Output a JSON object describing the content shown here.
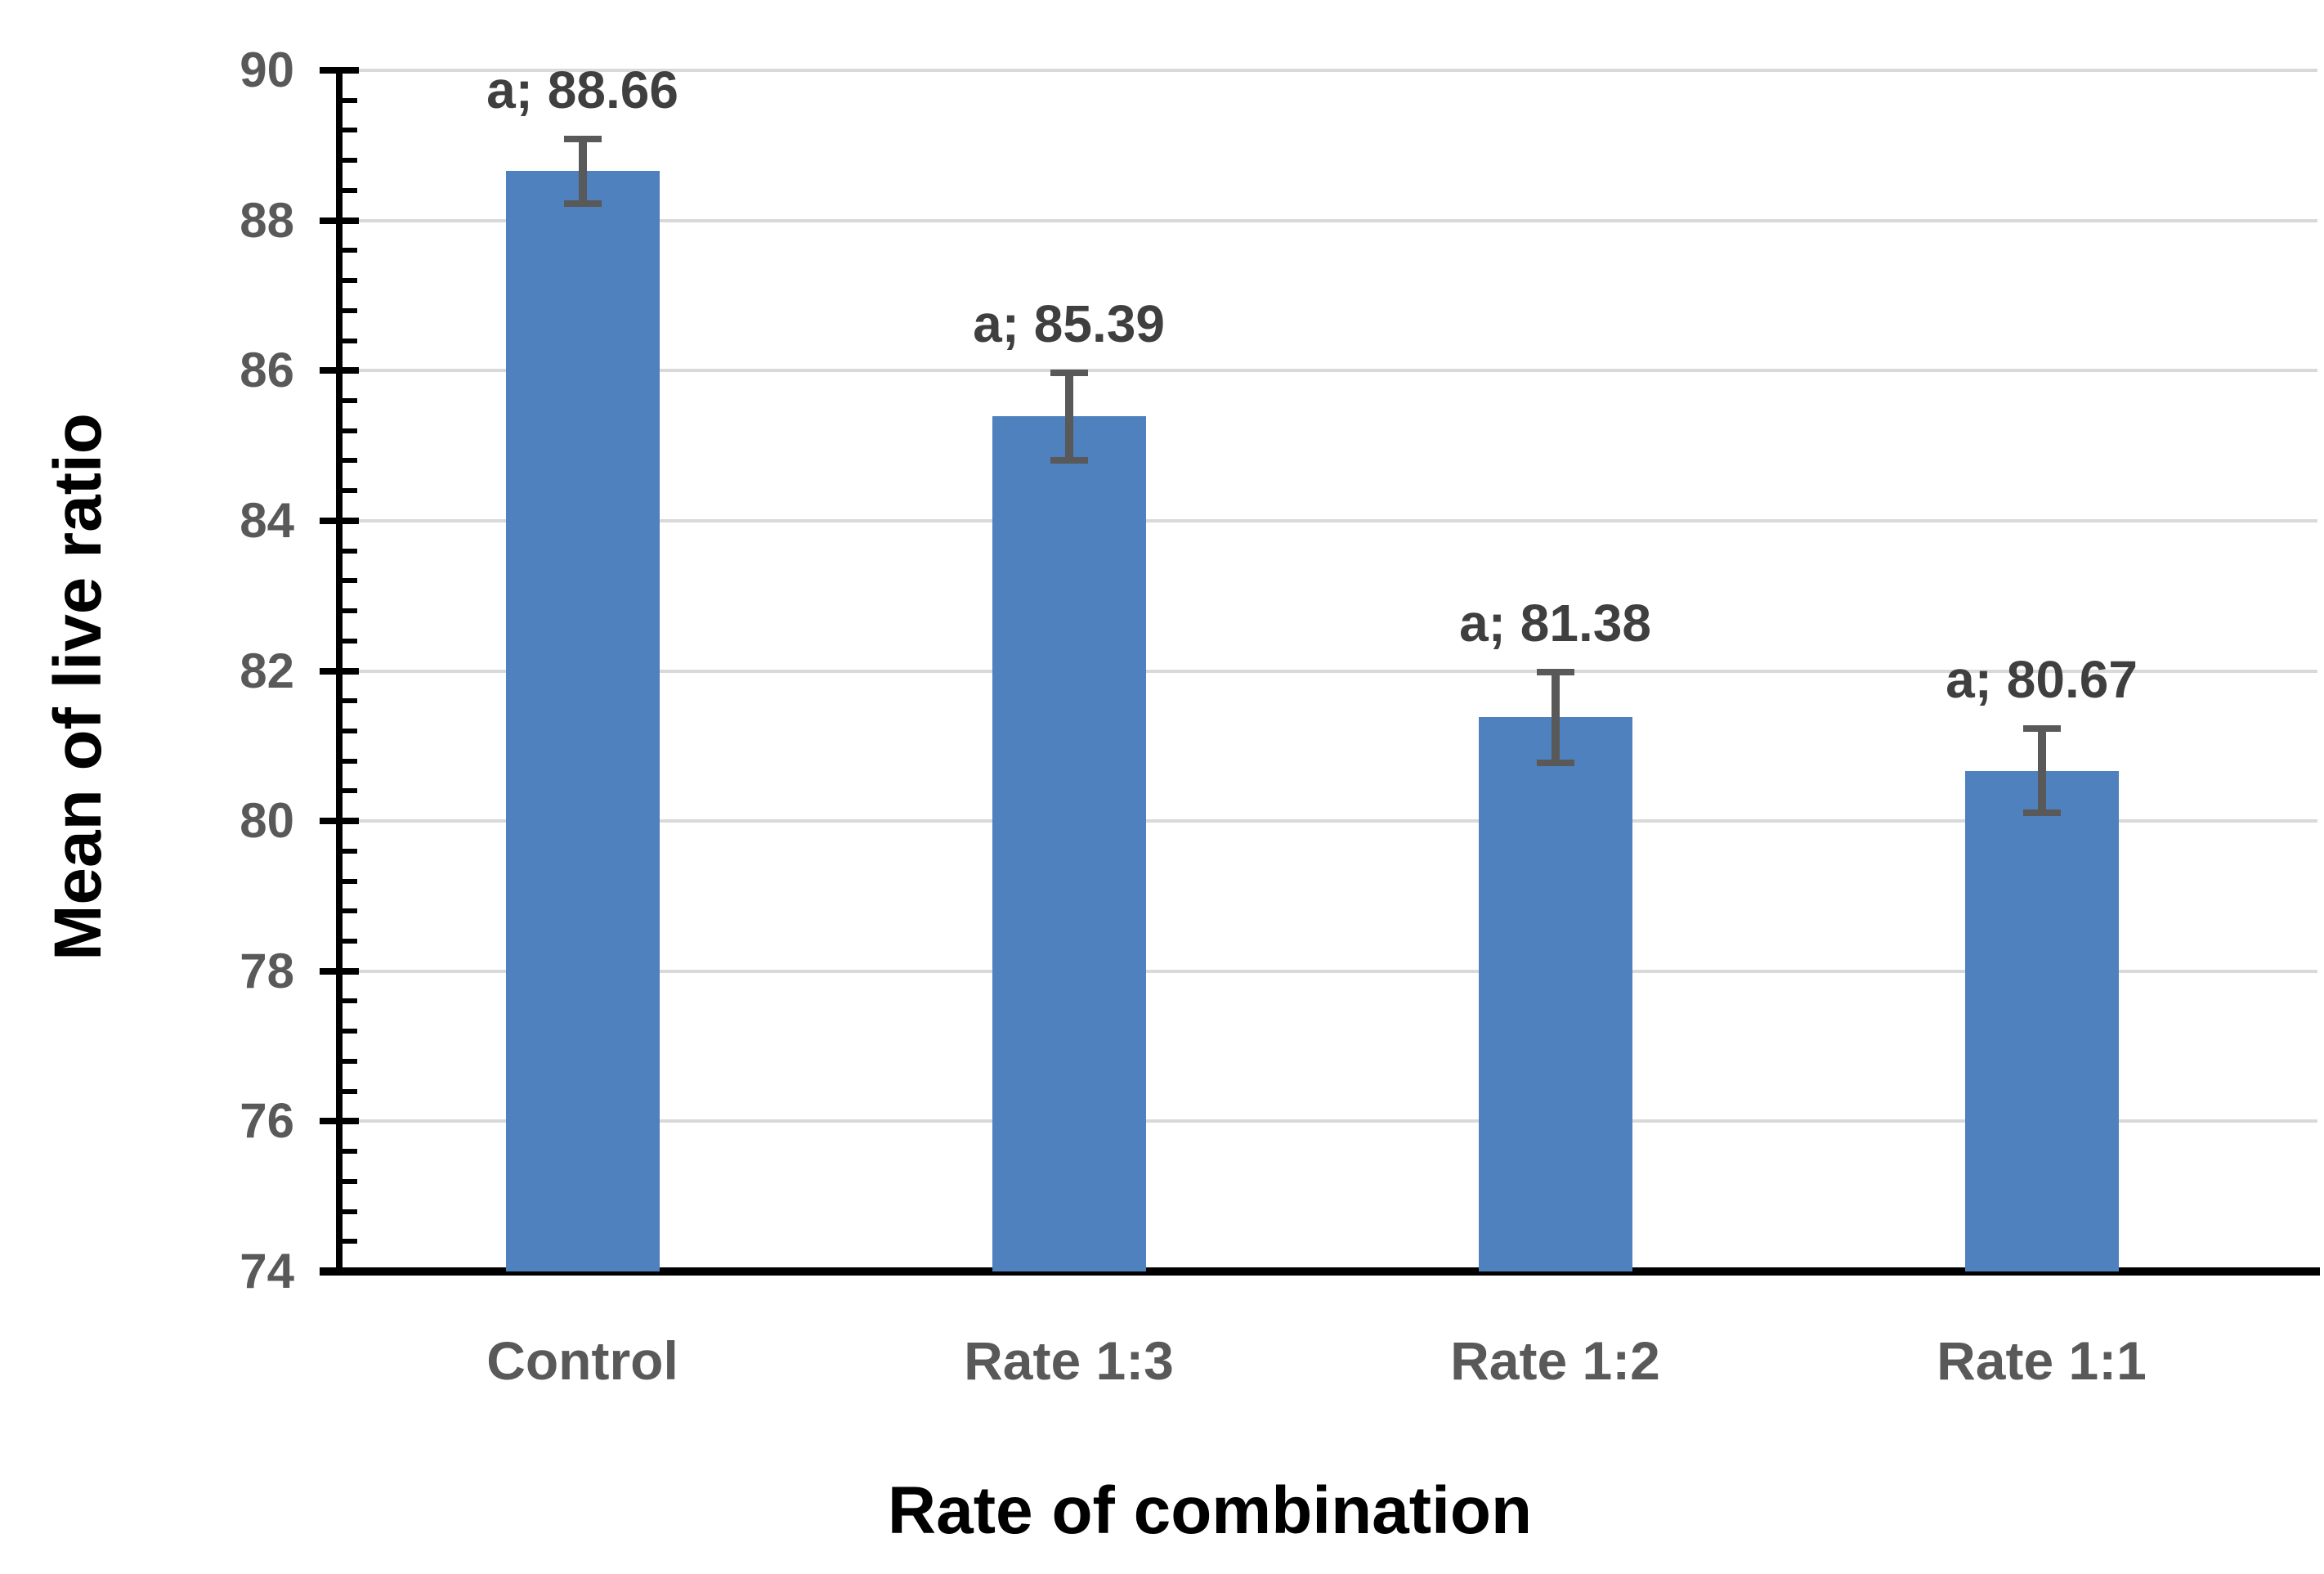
{
  "chart_data": {
    "type": "bar",
    "categories": [
      "Control",
      "Rate 1:3",
      "Rate 1:2",
      "Rate 1:1"
    ],
    "values": [
      88.66,
      85.39,
      81.38,
      80.67
    ],
    "error_bars": [
      0.43,
      0.58,
      0.6,
      0.56
    ],
    "data_labels": [
      "a; 88.66",
      "a; 85.39",
      "a; 81.38",
      "a; 80.67"
    ],
    "xlabel": "Rate of combination",
    "ylabel": "Mean of live ratio",
    "ylim": [
      74,
      90
    ],
    "yticks": [
      90,
      88,
      86,
      84,
      82,
      80,
      78,
      76,
      74
    ],
    "ymajor_unit": 2,
    "yminor_unit": 0.4,
    "grid": "horizontal-major",
    "legend": false
  },
  "colors": {
    "bar": "#4E81BD",
    "error_bar": "#595959",
    "gridline": "#D9D9D9",
    "axis_line": "#000000",
    "tick_label": "#595959",
    "category_label": "#595959",
    "data_label": "#3F3F3F",
    "axis_title": "#000000",
    "background": "#FFFFFF"
  }
}
